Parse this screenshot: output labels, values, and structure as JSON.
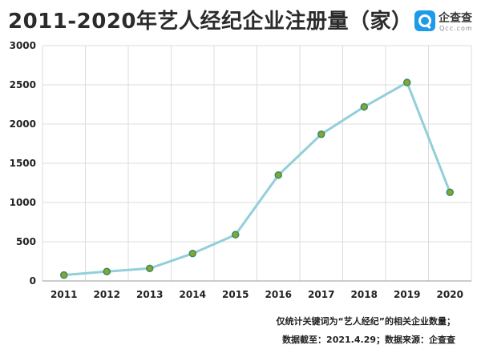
{
  "header": {
    "title": "2011-2020年艺人经纪企业注册量（家）",
    "logo_name": "企查查",
    "logo_domain": "Qcc.com"
  },
  "notes": {
    "line1": "仅统计关键词为“艺人经纪”的相关企业数量；",
    "line2": "数据截至：2021.4.29；数据来源：企查查"
  },
  "colors": {
    "line": "#93cfd9",
    "marker_fill": "#8fa22a",
    "marker_stroke": "#2f8f6a",
    "grid": "#dcdcdc",
    "axis": "#9a9a9a"
  },
  "chart_data": {
    "type": "line",
    "title": "2011-2020年艺人经纪企业注册量（家）",
    "xlabel": "",
    "ylabel": "",
    "categories": [
      "2011",
      "2012",
      "2013",
      "2014",
      "2015",
      "2016",
      "2017",
      "2018",
      "2019",
      "2020"
    ],
    "series": [
      {
        "values": [
          75,
          120,
          160,
          350,
          590,
          1350,
          1870,
          2220,
          2530,
          1130
        ]
      }
    ],
    "ylim": [
      0,
      3000
    ],
    "yticks": [
      0,
      500,
      1000,
      1500,
      2000,
      2500,
      3000
    ],
    "grid": true,
    "legend": "none"
  }
}
